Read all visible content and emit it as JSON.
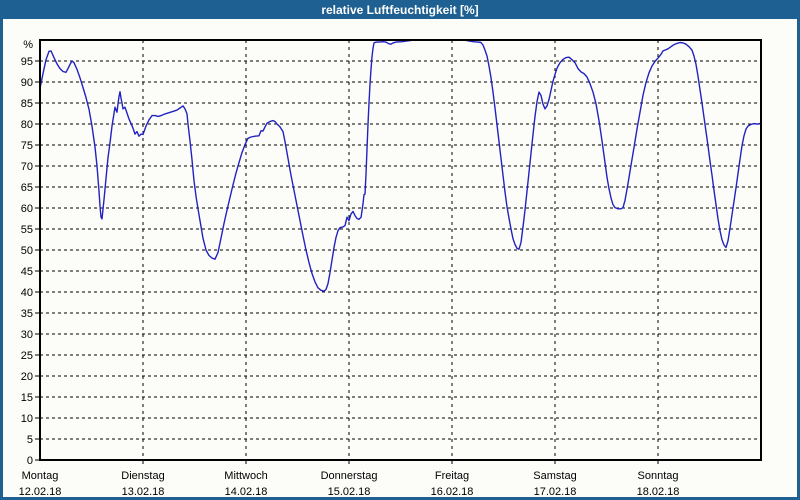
{
  "window": {
    "title": "relative Luftfeuchtigkeit [%]"
  },
  "chart_data": {
    "type": "line",
    "title": "relative Luftfeuchtigkeit [%]",
    "ylabel": "%",
    "xlabel": "",
    "ylim": [
      0,
      100
    ],
    "grid": "dashed",
    "legend": "none",
    "line_color": "#2222c0",
    "y_ticks": [
      0,
      5,
      10,
      15,
      20,
      25,
      30,
      35,
      40,
      45,
      50,
      55,
      60,
      65,
      70,
      75,
      80,
      85,
      90,
      95
    ],
    "percent_label": "%",
    "x_days": [
      {
        "label": "Montag",
        "date": "12.02.18"
      },
      {
        "label": "Dienstag",
        "date": "13.02.18"
      },
      {
        "label": "Mittwoch",
        "date": "14.02.18"
      },
      {
        "label": "Donnerstag",
        "date": "15.02.18"
      },
      {
        "label": "Freitag",
        "date": "16.02.18"
      },
      {
        "label": "Samstag",
        "date": "17.02.18"
      },
      {
        "label": "Sonntag",
        "date": "18.02.18"
      }
    ],
    "x_range_days": [
      0,
      7
    ],
    "series": [
      {
        "name": "relative Luftfeuchtigkeit",
        "unit": "%",
        "x_unit": "days since Montag 12.02.18 00:00",
        "points": [
          [
            0,
            88.5
          ],
          [
            0.029,
            92
          ],
          [
            0.058,
            95.3
          ],
          [
            0.087,
            97.3
          ],
          [
            0.107,
            97.4
          ],
          [
            0.136,
            95.8
          ],
          [
            0.165,
            94.3
          ],
          [
            0.194,
            93.2
          ],
          [
            0.223,
            92.5
          ],
          [
            0.252,
            92.3
          ],
          [
            0.272,
            93.2
          ],
          [
            0.291,
            94.2
          ],
          [
            0.311,
            95
          ],
          [
            0.33,
            94.6
          ],
          [
            0.359,
            93
          ],
          [
            0.388,
            91
          ],
          [
            0.417,
            88.7
          ],
          [
            0.447,
            86.3
          ],
          [
            0.476,
            83.5
          ],
          [
            0.505,
            79.5
          ],
          [
            0.534,
            74.5
          ],
          [
            0.553,
            70
          ],
          [
            0.573,
            64
          ],
          [
            0.583,
            60.5
          ],
          [
            0.592,
            57.8
          ],
          [
            0.602,
            57.4
          ],
          [
            0.621,
            62
          ],
          [
            0.641,
            67
          ],
          [
            0.66,
            72
          ],
          [
            0.68,
            75.5
          ],
          [
            0.699,
            79.5
          ],
          [
            0.718,
            82.5
          ],
          [
            0.728,
            84
          ],
          [
            0.738,
            83.4
          ],
          [
            0.748,
            82.8
          ],
          [
            0.757,
            84.8
          ],
          [
            0.767,
            86.5
          ],
          [
            0.777,
            87.7
          ],
          [
            0.786,
            86.2
          ],
          [
            0.796,
            85
          ],
          [
            0.806,
            83.6
          ],
          [
            0.825,
            84
          ],
          [
            0.845,
            82.6
          ],
          [
            0.864,
            81.2
          ],
          [
            0.883,
            80.2
          ],
          [
            0.903,
            79
          ],
          [
            0.922,
            77.6
          ],
          [
            0.942,
            78.2
          ],
          [
            0.961,
            77.1
          ],
          [
            0.981,
            77.6
          ],
          [
            1,
            77.5
          ],
          [
            1.029,
            79.5
          ],
          [
            1.058,
            81
          ],
          [
            1.087,
            82
          ],
          [
            1.117,
            82
          ],
          [
            1.146,
            81.8
          ],
          [
            1.175,
            82
          ],
          [
            1.214,
            82.4
          ],
          [
            1.252,
            82.7
          ],
          [
            1.291,
            83
          ],
          [
            1.33,
            83.3
          ],
          [
            1.359,
            83.8
          ],
          [
            1.388,
            84.3
          ],
          [
            1.408,
            83.6
          ],
          [
            1.427,
            82.4
          ],
          [
            1.437,
            80
          ],
          [
            1.456,
            76
          ],
          [
            1.476,
            71.5
          ],
          [
            1.495,
            66.5
          ],
          [
            1.515,
            62.8
          ],
          [
            1.534,
            59.8
          ],
          [
            1.553,
            57
          ],
          [
            1.583,
            52.8
          ],
          [
            1.612,
            50
          ],
          [
            1.641,
            48.7
          ],
          [
            1.67,
            48.1
          ],
          [
            1.699,
            47.8
          ],
          [
            1.728,
            49.4
          ],
          [
            1.757,
            52.8
          ],
          [
            1.786,
            56.3
          ],
          [
            1.816,
            59.5
          ],
          [
            1.845,
            62.5
          ],
          [
            1.874,
            65.5
          ],
          [
            1.903,
            68.3
          ],
          [
            1.932,
            70.8
          ],
          [
            1.961,
            73.2
          ],
          [
            1.99,
            75.1
          ],
          [
            2.019,
            76.6
          ],
          [
            2.049,
            76.9
          ],
          [
            2.087,
            77.1
          ],
          [
            2.126,
            77.2
          ],
          [
            2.146,
            78.4
          ],
          [
            2.165,
            78.3
          ],
          [
            2.184,
            79.3
          ],
          [
            2.204,
            80.2
          ],
          [
            2.233,
            80.6
          ],
          [
            2.262,
            80.8
          ],
          [
            2.282,
            80.6
          ],
          [
            2.301,
            80
          ],
          [
            2.33,
            79.3
          ],
          [
            2.359,
            78.2
          ],
          [
            2.379,
            75.8
          ],
          [
            2.408,
            71.8
          ],
          [
            2.437,
            67.8
          ],
          [
            2.466,
            64.2
          ],
          [
            2.495,
            60.6
          ],
          [
            2.524,
            57
          ],
          [
            2.553,
            53.4
          ],
          [
            2.583,
            50
          ],
          [
            2.612,
            47
          ],
          [
            2.641,
            44.4
          ],
          [
            2.67,
            42.4
          ],
          [
            2.699,
            41
          ],
          [
            2.728,
            40.4
          ],
          [
            2.757,
            40.2
          ],
          [
            2.777,
            40.6
          ],
          [
            2.796,
            42
          ],
          [
            2.816,
            44.6
          ],
          [
            2.835,
            47.6
          ],
          [
            2.854,
            50.6
          ],
          [
            2.874,
            53
          ],
          [
            2.893,
            54.6
          ],
          [
            2.913,
            55.3
          ],
          [
            2.942,
            55.5
          ],
          [
            2.961,
            55.8
          ],
          [
            2.981,
            57.8
          ],
          [
            3,
            57
          ],
          [
            3.019,
            58.6
          ],
          [
            3.039,
            59.2
          ],
          [
            3.058,
            58.2
          ],
          [
            3.078,
            57.5
          ],
          [
            3.097,
            57.3
          ],
          [
            3.117,
            57.8
          ],
          [
            3.136,
            61
          ],
          [
            3.146,
            63.2
          ],
          [
            3.155,
            63.3
          ],
          [
            3.165,
            68
          ],
          [
            3.175,
            74
          ],
          [
            3.184,
            80
          ],
          [
            3.194,
            85
          ],
          [
            3.204,
            89.5
          ],
          [
            3.214,
            93
          ],
          [
            3.223,
            96
          ],
          [
            3.233,
            98
          ],
          [
            3.243,
            99.3
          ],
          [
            3.262,
            99.5
          ],
          [
            3.291,
            99.5
          ],
          [
            3.33,
            99.6
          ],
          [
            3.359,
            99.5
          ],
          [
            3.388,
            99.1
          ],
          [
            3.408,
            99
          ],
          [
            3.427,
            99.3
          ],
          [
            3.456,
            99.5
          ],
          [
            3.515,
            99.6
          ],
          [
            3.573,
            99.8
          ],
          [
            3.631,
            100
          ],
          [
            3.728,
            100
          ],
          [
            3.825,
            100
          ],
          [
            3.922,
            100
          ],
          [
            4,
            100
          ],
          [
            4.058,
            100
          ],
          [
            4.117,
            100
          ],
          [
            4.155,
            99.8
          ],
          [
            4.204,
            99.6
          ],
          [
            4.252,
            99.5
          ],
          [
            4.282,
            99.4
          ],
          [
            4.301,
            98.8
          ],
          [
            4.32,
            97.6
          ],
          [
            4.34,
            96.2
          ],
          [
            4.359,
            93.8
          ],
          [
            4.379,
            91
          ],
          [
            4.398,
            87.6
          ],
          [
            4.417,
            83.8
          ],
          [
            4.437,
            79.8
          ],
          [
            4.456,
            75.8
          ],
          [
            4.476,
            71.8
          ],
          [
            4.495,
            67.8
          ],
          [
            4.515,
            63.8
          ],
          [
            4.534,
            60.3
          ],
          [
            4.553,
            57.6
          ],
          [
            4.573,
            55
          ],
          [
            4.592,
            52.7
          ],
          [
            4.612,
            51.3
          ],
          [
            4.631,
            50.4
          ],
          [
            4.65,
            50.2
          ],
          [
            4.67,
            51.8
          ],
          [
            4.689,
            55.5
          ],
          [
            4.709,
            59.5
          ],
          [
            4.728,
            64
          ],
          [
            4.748,
            68.5
          ],
          [
            4.767,
            73
          ],
          [
            4.786,
            77.5
          ],
          [
            4.806,
            81.8
          ],
          [
            4.825,
            85.3
          ],
          [
            4.845,
            87.6
          ],
          [
            4.864,
            86.8
          ],
          [
            4.883,
            84.8
          ],
          [
            4.903,
            83.6
          ],
          [
            4.922,
            84.3
          ],
          [
            4.942,
            85.8
          ],
          [
            4.961,
            88
          ],
          [
            4.981,
            90.2
          ],
          [
            5,
            91.8
          ],
          [
            5.019,
            93.3
          ],
          [
            5.049,
            94.6
          ],
          [
            5.078,
            95.4
          ],
          [
            5.107,
            95.8
          ],
          [
            5.136,
            95.9
          ],
          [
            5.165,
            95.3
          ],
          [
            5.194,
            94.6
          ],
          [
            5.223,
            93.2
          ],
          [
            5.252,
            92.4
          ],
          [
            5.282,
            92
          ],
          [
            5.311,
            91.2
          ],
          [
            5.34,
            89.6
          ],
          [
            5.369,
            87.6
          ],
          [
            5.398,
            84.8
          ],
          [
            5.427,
            80.8
          ],
          [
            5.456,
            76
          ],
          [
            5.485,
            70.8
          ],
          [
            5.505,
            67.3
          ],
          [
            5.524,
            64.6
          ],
          [
            5.544,
            62.4
          ],
          [
            5.563,
            60.8
          ],
          [
            5.583,
            60.1
          ],
          [
            5.612,
            59.8
          ],
          [
            5.641,
            59.8
          ],
          [
            5.66,
            60.1
          ],
          [
            5.68,
            61.8
          ],
          [
            5.709,
            65.8
          ],
          [
            5.738,
            70.2
          ],
          [
            5.767,
            74.4
          ],
          [
            5.796,
            78.8
          ],
          [
            5.825,
            82.8
          ],
          [
            5.854,
            86.8
          ],
          [
            5.883,
            89.8
          ],
          [
            5.913,
            92.2
          ],
          [
            5.942,
            93.8
          ],
          [
            5.971,
            94.9
          ],
          [
            6,
            95.7
          ],
          [
            6.029,
            96.6
          ],
          [
            6.049,
            97.4
          ],
          [
            6.068,
            97.6
          ],
          [
            6.097,
            97.9
          ],
          [
            6.126,
            98.4
          ],
          [
            6.155,
            98.9
          ],
          [
            6.184,
            99.2
          ],
          [
            6.214,
            99.4
          ],
          [
            6.243,
            99.3
          ],
          [
            6.272,
            99
          ],
          [
            6.301,
            98.4
          ],
          [
            6.33,
            97.6
          ],
          [
            6.35,
            96.2
          ],
          [
            6.369,
            94.2
          ],
          [
            6.388,
            91.4
          ],
          [
            6.408,
            88.2
          ],
          [
            6.427,
            85
          ],
          [
            6.447,
            81.6
          ],
          [
            6.466,
            78.2
          ],
          [
            6.485,
            74.8
          ],
          [
            6.505,
            71.2
          ],
          [
            6.524,
            67.8
          ],
          [
            6.544,
            64.2
          ],
          [
            6.563,
            60.8
          ],
          [
            6.583,
            57.4
          ],
          [
            6.602,
            54.6
          ],
          [
            6.621,
            52.4
          ],
          [
            6.641,
            51.2
          ],
          [
            6.66,
            50.6
          ],
          [
            6.68,
            52.2
          ],
          [
            6.699,
            55.2
          ],
          [
            6.718,
            58.4
          ],
          [
            6.738,
            61.6
          ],
          [
            6.757,
            64.8
          ],
          [
            6.777,
            68.2
          ],
          [
            6.796,
            71.6
          ],
          [
            6.816,
            74.8
          ],
          [
            6.835,
            77.2
          ],
          [
            6.854,
            78.8
          ],
          [
            6.874,
            79.5
          ],
          [
            6.903,
            79.9
          ],
          [
            6.932,
            80.1
          ],
          [
            6.961,
            80
          ],
          [
            6.981,
            80
          ],
          [
            7,
            80.3
          ]
        ]
      }
    ]
  }
}
